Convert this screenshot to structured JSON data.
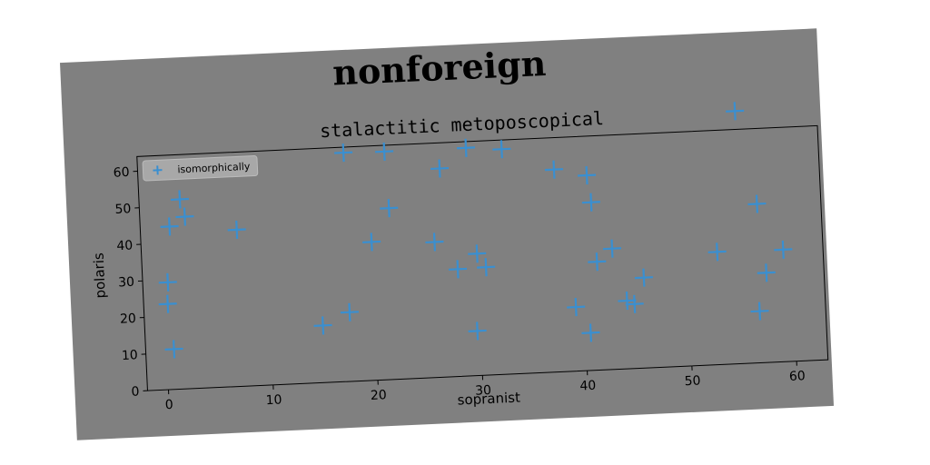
{
  "figure": {
    "suptitle": "nonforeign"
  },
  "chart_data": {
    "type": "scatter",
    "title": "stalactitic metoposcopical",
    "xlabel": "sopranist",
    "ylabel": "polaris",
    "xlim": [
      -2,
      63
    ],
    "ylim": [
      0,
      64
    ],
    "xticks": [
      0,
      10,
      20,
      30,
      40,
      50,
      60
    ],
    "yticks": [
      0,
      10,
      20,
      30,
      40,
      50,
      60
    ],
    "grid": false,
    "legend_position": "top-left",
    "series": [
      {
        "name": "isomorphically",
        "marker": "plus",
        "color": "#3a8fd0",
        "x": [
          0.4,
          0.3,
          0.7,
          0.8,
          1.9,
          2.3,
          7.2,
          15.0,
          17.6,
          17.7,
          20.0,
          21.6,
          21.8,
          26.0,
          26.8,
          28.1,
          29.4,
          29.7,
          30.0,
          30.8,
          32.8,
          37.7,
          39.2,
          40.5,
          40.8,
          41.1,
          41.4,
          42.9,
          44.1,
          44.8,
          45.8,
          52.9,
          55.2,
          56.7,
          56.9,
          57.5,
          59.2
        ],
        "y": [
          29.3,
          23.4,
          11.0,
          44.5,
          51.8,
          47.0,
          42.8,
          15.6,
          18.9,
          62.5,
          37.8,
          62.3,
          46.8,
          37.0,
          57.0,
          29.3,
          62.3,
          12.2,
          33.3,
          29.5,
          61.5,
          55.3,
          17.5,
          10.3,
          53.3,
          45.9,
          29.6,
          33.0,
          18.6,
          17.6,
          24.7,
          30.8,
          69.0,
          14.1,
          43.4,
          24.5,
          30.6
        ]
      }
    ]
  }
}
